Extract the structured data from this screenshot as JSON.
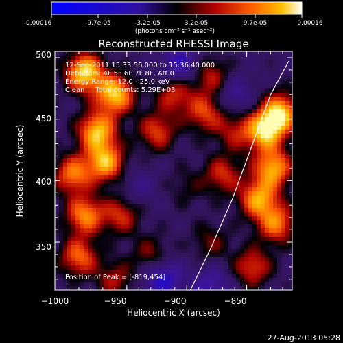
{
  "colorbar": {
    "tick_labels": [
      "-0.00016",
      "-9.7e-05",
      "-3.2e-05",
      "3.2e-05",
      "9.7e-05",
      "0.00016"
    ],
    "units": "(photons cm⁻² s⁻¹ asec⁻²)"
  },
  "chart_data": {
    "type": "heatmap",
    "title": "Reconstructed RHESSI Image",
    "xlabel": "Heliocentric X (arcsec)",
    "ylabel": "Heliocentric Y (arcsec)",
    "xlim": [
      -1010,
      -812
    ],
    "ylim": [
      311,
      505
    ],
    "xticks": [
      -1000,
      -950,
      -900,
      -850
    ],
    "xtick_labels": [
      "−1000",
      "−950",
      "−900",
      "−850"
    ],
    "yticks": [
      350,
      400,
      450,
      500
    ],
    "ytick_labels": [
      "350",
      "400",
      "450",
      "500"
    ],
    "color_range": [
      -0.00016,
      0.00016
    ],
    "annotations": [
      "12-Sep-2011 15:33:56.000 to 15:36:40.000",
      "Detectors: 4F 5F 6F 7F 8F, Att 0",
      "Energy Range: 12.0 - 25.0 keV",
      "Clean     Total counts: 5.29E+03"
    ],
    "peak_label": "Position of Peak = [-819,454]",
    "blobs": [
      {
        "x": -985,
        "y": 488,
        "v": 1.0
      },
      {
        "x": -960,
        "y": 470,
        "v": 0.95
      },
      {
        "x": -975,
        "y": 440,
        "v": 0.9
      },
      {
        "x": -968,
        "y": 415,
        "v": 0.85
      },
      {
        "x": -995,
        "y": 405,
        "v": 0.7
      },
      {
        "x": -985,
        "y": 372,
        "v": 0.75
      },
      {
        "x": -955,
        "y": 372,
        "v": 0.5
      },
      {
        "x": -990,
        "y": 338,
        "v": 0.65
      },
      {
        "x": -960,
        "y": 320,
        "v": 0.4
      },
      {
        "x": -930,
        "y": 340,
        "v": 0.35
      },
      {
        "x": -925,
        "y": 440,
        "v": 0.55
      },
      {
        "x": -910,
        "y": 470,
        "v": 0.5
      },
      {
        "x": -880,
        "y": 485,
        "v": 0.45
      },
      {
        "x": -885,
        "y": 455,
        "v": 0.55
      },
      {
        "x": -860,
        "y": 440,
        "v": 0.4
      },
      {
        "x": -835,
        "y": 440,
        "v": 0.9
      },
      {
        "x": -822,
        "y": 455,
        "v": 0.95
      },
      {
        "x": -828,
        "y": 410,
        "v": 0.85
      },
      {
        "x": -840,
        "y": 385,
        "v": 0.8
      },
      {
        "x": -825,
        "y": 365,
        "v": 0.7
      },
      {
        "x": -845,
        "y": 330,
        "v": 0.55
      },
      {
        "x": -880,
        "y": 350,
        "v": 0.3
      },
      {
        "x": -900,
        "y": 395,
        "v": 0.2
      },
      {
        "x": -870,
        "y": 405,
        "v": 0.5
      },
      {
        "x": -940,
        "y": 395,
        "v": -0.2
      },
      {
        "x": -920,
        "y": 320,
        "v": -0.6
      },
      {
        "x": -905,
        "y": 495,
        "v": -0.5
      },
      {
        "x": -880,
        "y": 315,
        "v": -0.4
      },
      {
        "x": -860,
        "y": 470,
        "v": -0.3
      }
    ],
    "limb": [
      {
        "x": -897,
        "y": 311
      },
      {
        "x": -880,
        "y": 345
      },
      {
        "x": -862,
        "y": 385
      },
      {
        "x": -845,
        "y": 430
      },
      {
        "x": -830,
        "y": 470
      },
      {
        "x": -815,
        "y": 497
      }
    ],
    "grid": false
  },
  "footer": {
    "timestamp": "27-Aug-2013 05:28"
  }
}
